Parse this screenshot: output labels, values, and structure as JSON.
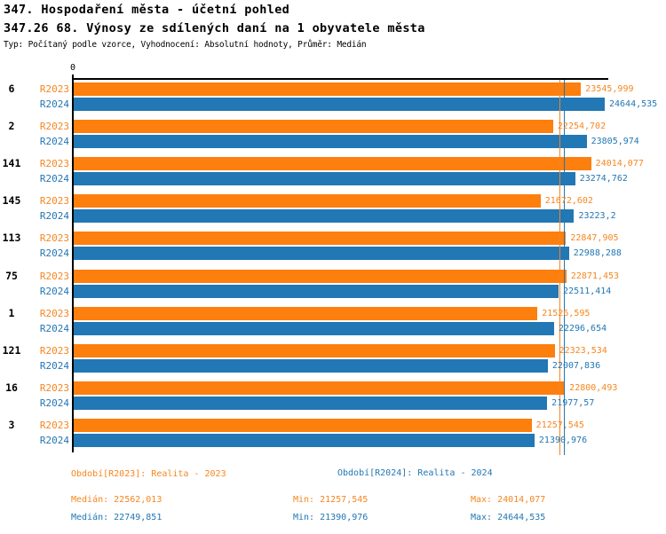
{
  "header": {
    "title": "347. Hospodaření města - účetní pohled",
    "subtitle": "347.26 68. Výnosy ze sdílených daní na 1 obyvatele města",
    "meta": "Typ: Počítaný podle vzorce, Vyhodnocení: Absolutní hodnoty, Průměr: Medián"
  },
  "axis": {
    "zero_label": "0"
  },
  "chart_data": {
    "type": "bar",
    "orientation": "horizontal",
    "title": "347.26 68. Výnosy ze sdílených daní na 1 obyvatele města",
    "categories": [
      "6",
      "2",
      "141",
      "145",
      "113",
      "75",
      "1",
      "121",
      "16",
      "3"
    ],
    "xlim": [
      0,
      24850
    ],
    "grid": false,
    "legend_position": "bottom",
    "series": [
      {
        "name": "R2023",
        "color": "#fd7f0e",
        "values": [
          23545.999,
          22254.702,
          24014.077,
          21672.602,
          22847.905,
          22871.453,
          21526.595,
          22323.534,
          22800.493,
          21257.545
        ],
        "labels": [
          "23545,999",
          "22254,702",
          "24014,077",
          "21672,602",
          "22847,905",
          "22871,453",
          "21526,595",
          "22323,534",
          "22800,493",
          "21257,545"
        ],
        "median": 22562.013
      },
      {
        "name": "R2024",
        "color": "#2277b5",
        "values": [
          24644.535,
          23805.974,
          23274.762,
          23223.2,
          22988.288,
          22511.414,
          22296.654,
          22007.836,
          21977.57,
          21390.976
        ],
        "labels": [
          "24644,535",
          "23805,974",
          "23274,762",
          "23223,2",
          "22988,288",
          "22511,414",
          "22296,654",
          "22007,836",
          "21977,57",
          "21390,976"
        ],
        "median": 22749.851
      }
    ]
  },
  "legend": {
    "period_r2023": "Období[R2023]: Realita - 2023",
    "period_r2024": "Období[R2024]: Realita - 2024",
    "r2023": {
      "median": "Medián: 22562,013",
      "min": "Min: 21257,545",
      "max": "Max: 24014,077"
    },
    "r2024": {
      "median": "Medián: 22749,851",
      "min": "Min: 21390,976",
      "max": "Max: 24644,535"
    }
  }
}
